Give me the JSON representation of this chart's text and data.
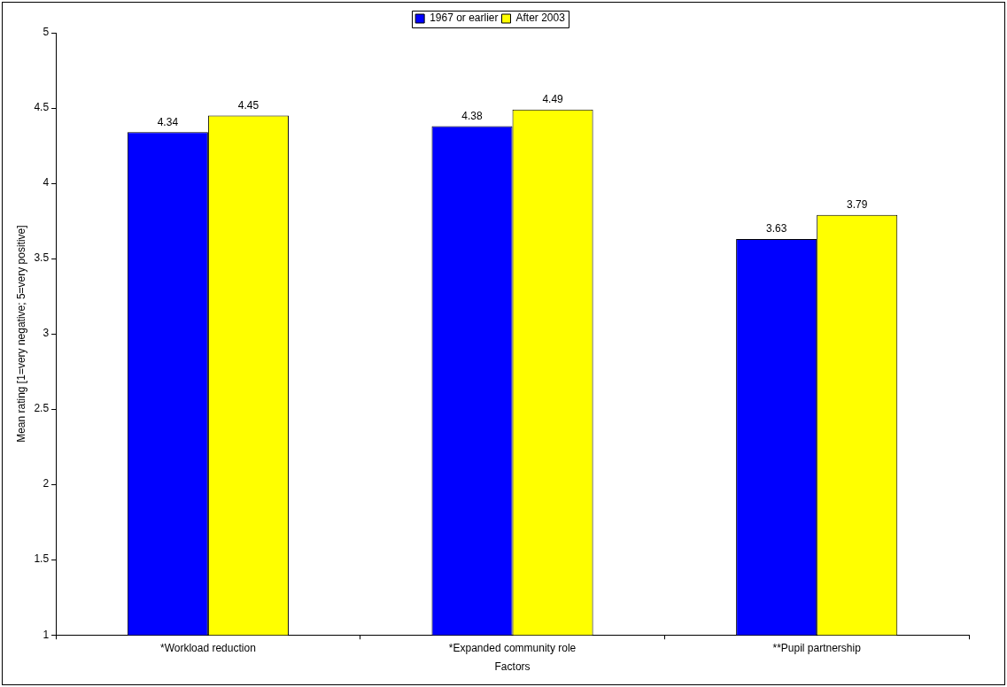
{
  "chart_data": {
    "type": "bar",
    "xlabel": "Factors",
    "ylabel": "Mean rating [1=very negative; 5=very positive]",
    "categories": [
      "*Workload reduction",
      "*Expanded community role",
      "**Pupil partnership"
    ],
    "series": [
      {
        "name": "1967 or earlier",
        "color": "#0000ff",
        "values": [
          4.34,
          4.38,
          3.63
        ]
      },
      {
        "name": "After 2003",
        "color": "#ffff00",
        "values": [
          4.45,
          4.49,
          3.79
        ]
      }
    ],
    "ylim": [
      1,
      5
    ],
    "yticks": [
      1,
      1.5,
      2,
      2.5,
      3,
      3.5,
      4,
      4.5,
      5
    ],
    "grid": false,
    "legend": "top",
    "data_labels": true
  }
}
